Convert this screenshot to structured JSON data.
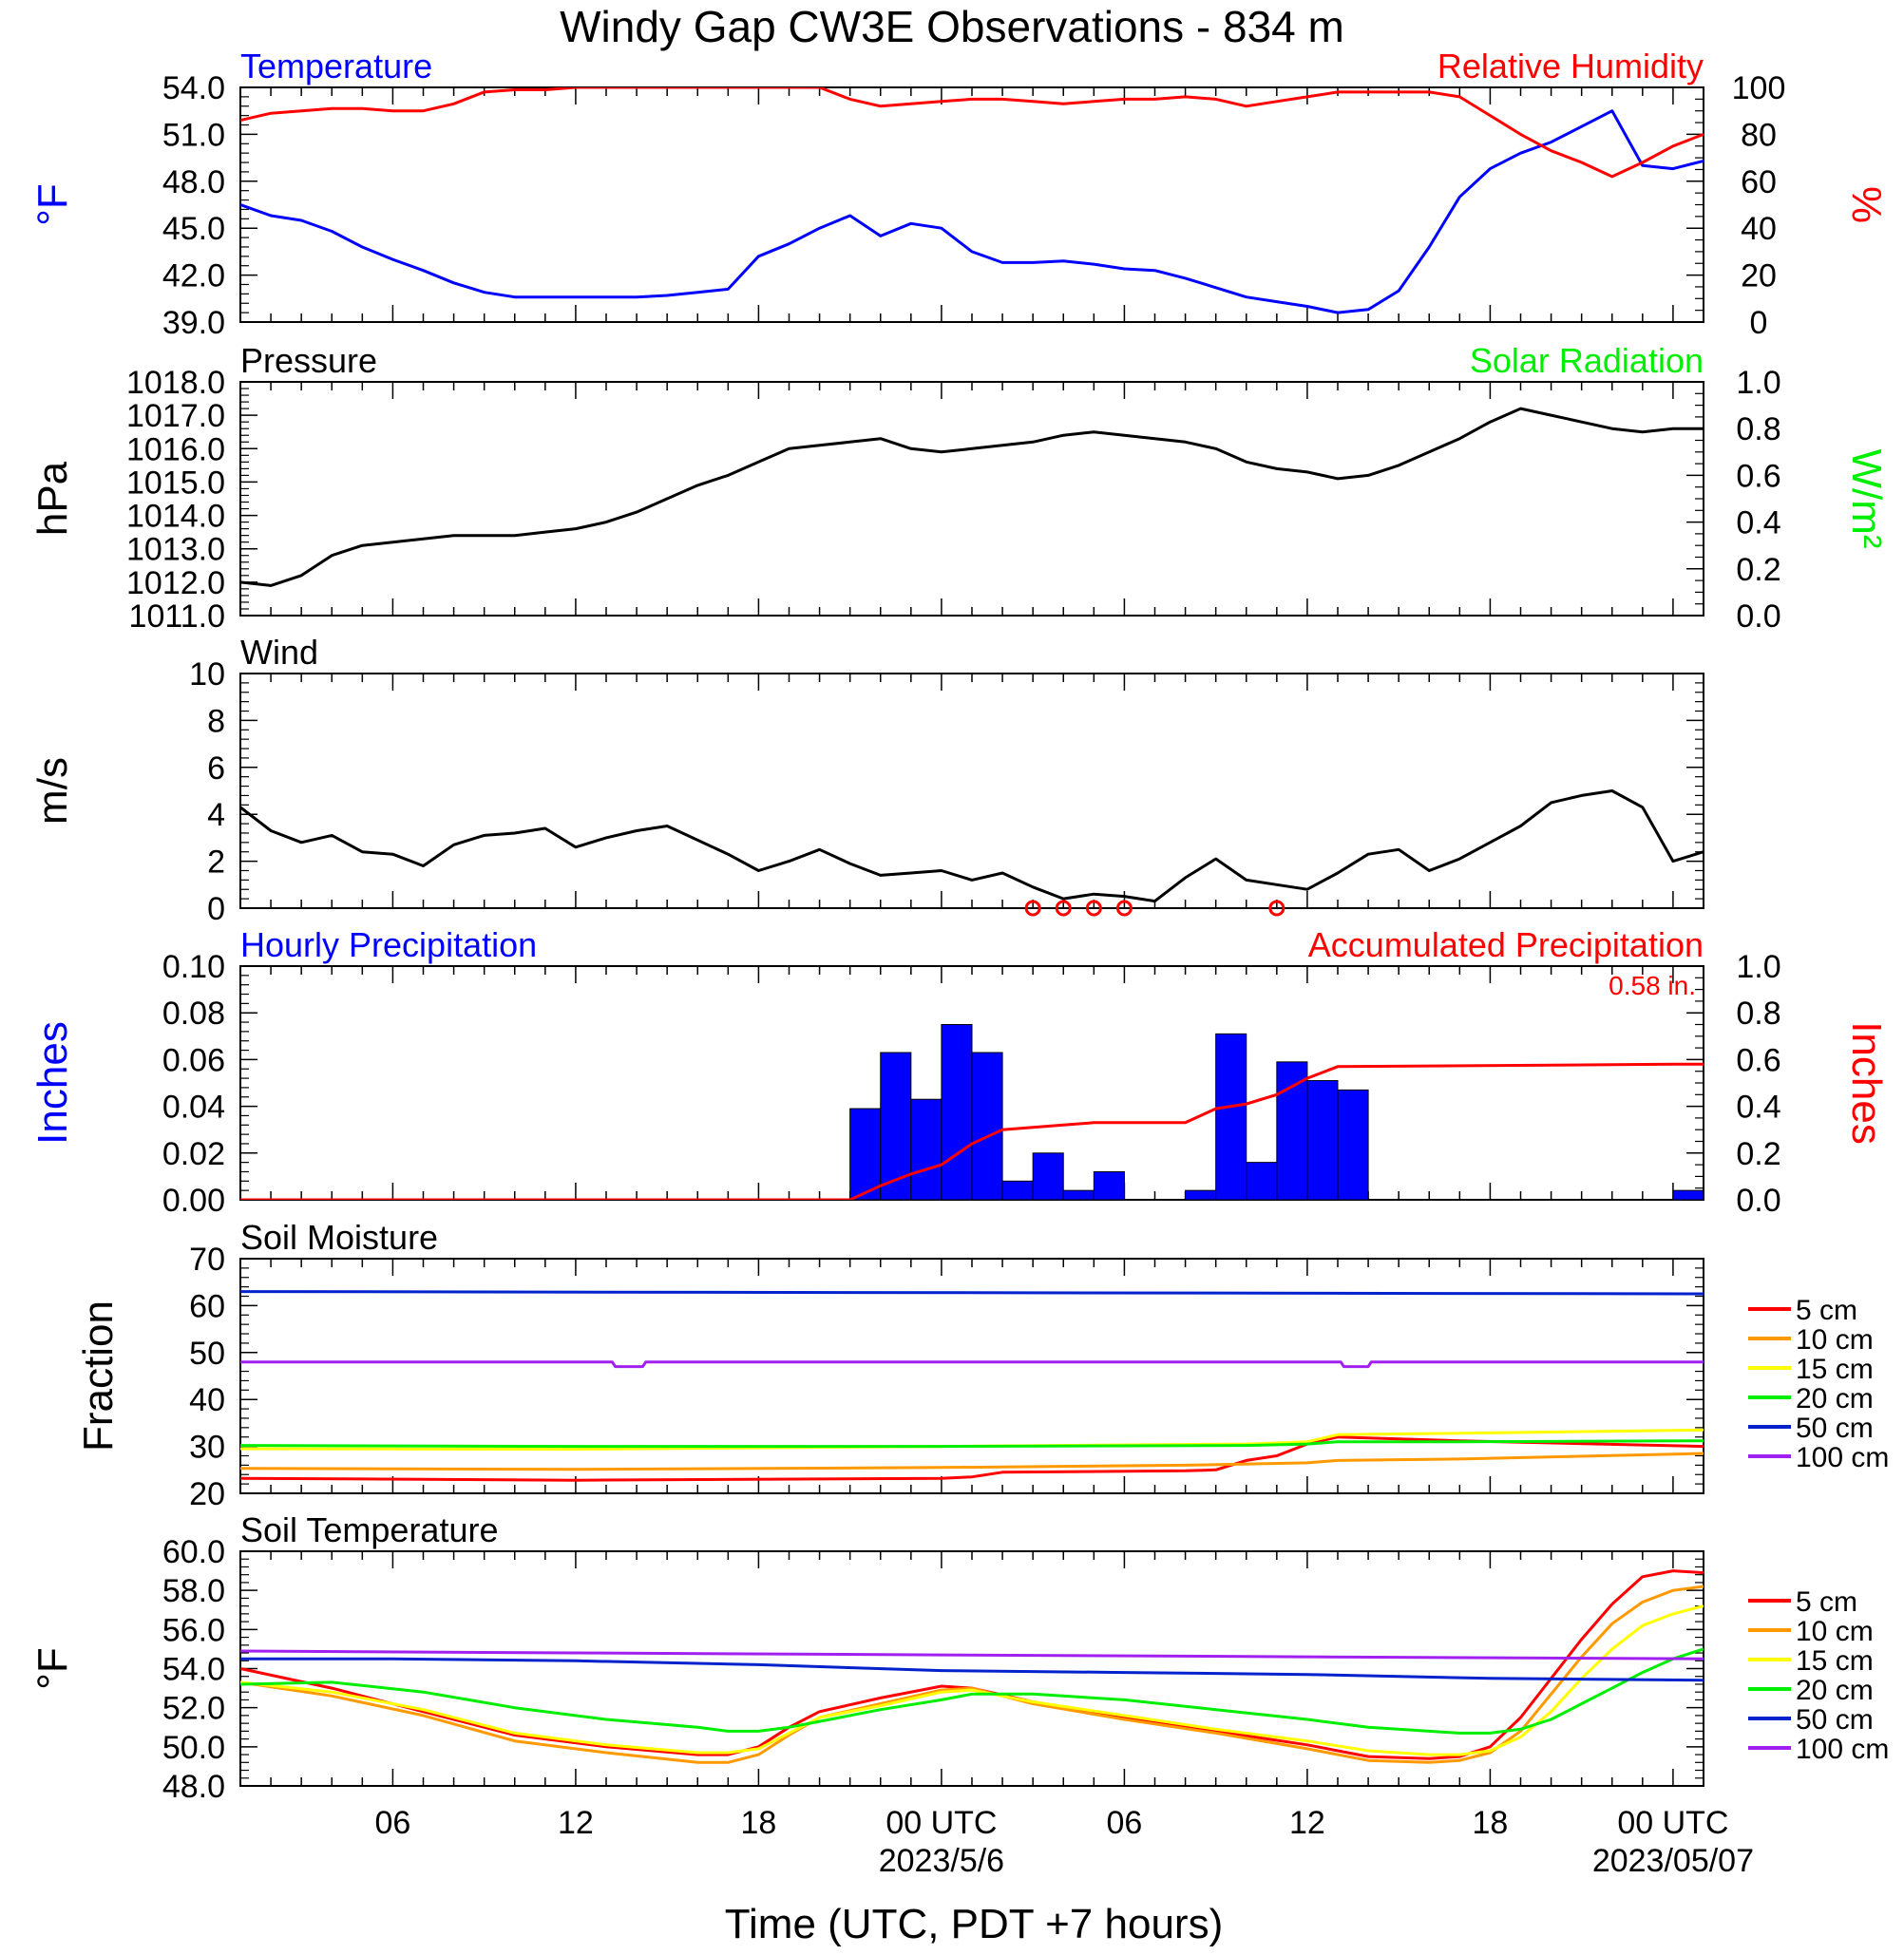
{
  "title": "Windy Gap CW3E Observations - 834 m",
  "x_axis": {
    "label": "Time (UTC, PDT +7 hours)",
    "ticks": [
      "06",
      "12",
      "18",
      "00 UTC",
      "06",
      "12",
      "18",
      "00 UTC"
    ],
    "tick_hours": [
      6,
      12,
      18,
      24,
      30,
      36,
      42,
      48
    ],
    "date_labels": [
      {
        "text": "2023/5/6",
        "hour": 24
      },
      {
        "text": "2023/05/07",
        "hour": 48
      }
    ],
    "range_hours": [
      1,
      49
    ]
  },
  "colors": {
    "blue": "#0000ff",
    "red": "#ff0000",
    "green": "#00ee00",
    "black": "#000000",
    "orange": "#ff9900",
    "yellow": "#ffff00",
    "soil_blue": "#0022cc",
    "purple": "#a020f0"
  },
  "chart_data": [
    {
      "id": "temp",
      "type": "line",
      "title_left": "Temperature",
      "title_right": "Relative Humidity",
      "ylabel_left": "°F",
      "ylabel_right": "%",
      "ylim_left": [
        39,
        54
      ],
      "ylim_right": [
        0,
        100
      ],
      "yticks_left": [
        "39.0",
        "42.0",
        "45.0",
        "48.0",
        "51.0",
        "54.0"
      ],
      "yticks_right": [
        "0",
        "20",
        "40",
        "60",
        "80",
        "100"
      ],
      "series": [
        {
          "axis": "left",
          "color": "#0000ff",
          "x": [
            1,
            2,
            3,
            4,
            5,
            6,
            7,
            8,
            9,
            10,
            11,
            12,
            13,
            14,
            15,
            16,
            17,
            18,
            19,
            20,
            21,
            22,
            23,
            24,
            25,
            26,
            27,
            28,
            29,
            30,
            31,
            32,
            33,
            34,
            35,
            36,
            37,
            38,
            39,
            40,
            41,
            42,
            43,
            44,
            45,
            46,
            47,
            48,
            49
          ],
          "y": [
            46.5,
            45.8,
            45.5,
            44.8,
            43.8,
            43.0,
            42.3,
            41.5,
            40.9,
            40.6,
            40.6,
            40.6,
            40.6,
            40.6,
            40.7,
            40.9,
            41.1,
            43.2,
            44.0,
            45.0,
            45.8,
            44.5,
            45.3,
            45.0,
            43.5,
            42.8,
            42.8,
            42.9,
            42.7,
            42.4,
            42.3,
            41.8,
            41.2,
            40.6,
            40.3,
            40.0,
            39.6,
            39.8,
            41.0,
            43.8,
            47.0,
            48.8,
            49.8,
            50.5,
            51.5,
            52.5,
            49.0,
            48.8,
            49.3
          ]
        },
        {
          "axis": "right",
          "color": "#ff0000",
          "x": [
            1,
            2,
            3,
            4,
            5,
            6,
            7,
            8,
            9,
            10,
            11,
            12,
            13,
            14,
            15,
            16,
            17,
            18,
            19,
            20,
            21,
            22,
            23,
            24,
            25,
            26,
            27,
            28,
            29,
            30,
            31,
            32,
            33,
            34,
            35,
            36,
            37,
            38,
            39,
            40,
            41,
            42,
            43,
            44,
            45,
            46,
            47,
            48,
            49
          ],
          "y": [
            86,
            89,
            90,
            91,
            91,
            90,
            90,
            93,
            98,
            99,
            99,
            100,
            100,
            100,
            100,
            100,
            100,
            100,
            100,
            100,
            95,
            92,
            93,
            94,
            95,
            95,
            94,
            93,
            94,
            95,
            95,
            96,
            95,
            92,
            94,
            96,
            98,
            98,
            98,
            98,
            96,
            88,
            80,
            73,
            68,
            62,
            68,
            75,
            80
          ]
        }
      ]
    },
    {
      "id": "pressure",
      "type": "line",
      "title_left": "Pressure",
      "title_right": "Solar Radiation",
      "ylabel_left": "hPa",
      "ylabel_right": "W/m²",
      "ylim_left": [
        1011,
        1018
      ],
      "ylim_right": [
        0,
        1
      ],
      "yticks_left": [
        "1011.0",
        "1012.0",
        "1013.0",
        "1014.0",
        "1015.0",
        "1016.0",
        "1017.0",
        "1018.0"
      ],
      "yticks_right": [
        "0.0",
        "0.2",
        "0.4",
        "0.6",
        "0.8",
        "1.0"
      ],
      "series": [
        {
          "axis": "left",
          "color": "#000000",
          "x": [
            1,
            2,
            3,
            4,
            5,
            6,
            7,
            8,
            9,
            10,
            11,
            12,
            13,
            14,
            15,
            16,
            17,
            18,
            19,
            20,
            21,
            22,
            23,
            24,
            25,
            26,
            27,
            28,
            29,
            30,
            31,
            32,
            33,
            34,
            35,
            36,
            37,
            38,
            39,
            40,
            41,
            42,
            43,
            44,
            45,
            46,
            47,
            48,
            49
          ],
          "y": [
            1012.0,
            1011.9,
            1012.2,
            1012.8,
            1013.1,
            1013.2,
            1013.3,
            1013.4,
            1013.4,
            1013.4,
            1013.5,
            1013.6,
            1013.8,
            1014.1,
            1014.5,
            1014.9,
            1015.2,
            1015.6,
            1016.0,
            1016.1,
            1016.2,
            1016.3,
            1016.0,
            1015.9,
            1016.0,
            1016.1,
            1016.2,
            1016.4,
            1016.5,
            1016.4,
            1016.3,
            1016.2,
            1016.0,
            1015.6,
            1015.4,
            1015.3,
            1015.1,
            1015.2,
            1015.5,
            1015.9,
            1016.3,
            1016.8,
            1017.2,
            1017.0,
            1016.8,
            1016.6,
            1016.5,
            1016.6,
            1016.6
          ]
        }
      ]
    },
    {
      "id": "wind",
      "type": "line",
      "title_left": "Wind",
      "ylabel_left": "m/s",
      "ylim_left": [
        0,
        10
      ],
      "yticks_left": [
        "0",
        "2",
        "4",
        "6",
        "8",
        "10"
      ],
      "series": [
        {
          "axis": "left",
          "color": "#000000",
          "x": [
            1,
            2,
            3,
            4,
            5,
            6,
            7,
            8,
            9,
            10,
            11,
            12,
            13,
            14,
            15,
            16,
            17,
            18,
            19,
            20,
            21,
            22,
            23,
            24,
            25,
            26,
            27,
            28,
            29,
            30,
            31,
            32,
            33,
            34,
            35,
            36,
            37,
            38,
            39,
            40,
            41,
            42,
            43,
            44,
            45,
            46,
            47,
            48,
            49
          ],
          "y": [
            4.3,
            3.3,
            2.8,
            3.1,
            2.4,
            2.3,
            1.8,
            2.7,
            3.1,
            3.2,
            3.4,
            2.6,
            3.0,
            3.3,
            3.5,
            2.9,
            2.3,
            1.6,
            2.0,
            2.5,
            1.9,
            1.4,
            1.5,
            1.6,
            1.2,
            1.5,
            0.9,
            0.4,
            0.6,
            0.5,
            0.3,
            1.3,
            2.1,
            1.2,
            1.0,
            0.8,
            1.5,
            2.3,
            2.5,
            1.6,
            2.1,
            2.8,
            3.5,
            4.5,
            4.8,
            5.0,
            4.3,
            2.0,
            2.4
          ]
        }
      ],
      "calm_markers_hours": [
        4,
        5,
        6,
        7,
        12
      ],
      "calm_offset_hours": 23
    },
    {
      "id": "precip",
      "type": "bar",
      "title_left": "Hourly Precipitation",
      "title_right": "Accumulated Precipitation",
      "annotation": "0.58 in.",
      "ylabel_left": "Inches",
      "ylabel_right": "Inches",
      "ylim_left": [
        0,
        0.1
      ],
      "ylim_right": [
        0,
        1
      ],
      "yticks_left": [
        "0.00",
        "0.02",
        "0.04",
        "0.06",
        "0.08",
        "0.10"
      ],
      "yticks_right": [
        "0.0",
        "0.2",
        "0.4",
        "0.6",
        "0.8",
        "1.0"
      ],
      "bars": {
        "color": "#0000ff",
        "start_hours": [
          21,
          22,
          23,
          24,
          25,
          26,
          27,
          28,
          29,
          30,
          32,
          33,
          34,
          35,
          36,
          37,
          48
        ],
        "values": [
          0.039,
          0.063,
          0.043,
          0.075,
          0.063,
          0.008,
          0.02,
          0.004,
          0.012,
          0.0,
          0.004,
          0.071,
          0.016,
          0.059,
          0.051,
          0.047,
          0.004
        ]
      },
      "accumulated": {
        "color": "#ff0000",
        "x": [
          1,
          21,
          22,
          23,
          24,
          25,
          26,
          27,
          28,
          29,
          30,
          32,
          33,
          34,
          35,
          36,
          37,
          48,
          49
        ],
        "y": [
          0,
          0,
          0.06,
          0.11,
          0.15,
          0.24,
          0.3,
          0.31,
          0.32,
          0.33,
          0.33,
          0.33,
          0.39,
          0.41,
          0.45,
          0.52,
          0.57,
          0.58,
          0.58
        ]
      }
    },
    {
      "id": "soil_moisture",
      "type": "line",
      "title_left": "Soil Moisture",
      "ylabel_left": "Fraction",
      "ylim_left": [
        20,
        70
      ],
      "yticks_left": [
        "20",
        "30",
        "40",
        "50",
        "60",
        "70"
      ],
      "legend": [
        "5 cm",
        "10 cm",
        "15 cm",
        "20 cm",
        "50 cm",
        "100 cm"
      ],
      "legend_position": "right",
      "series": [
        {
          "name": "5 cm",
          "color": "#ff0000",
          "x": [
            1,
            12,
            24,
            25,
            26,
            32,
            33,
            34,
            35,
            36,
            37,
            41,
            49
          ],
          "y": [
            23.2,
            22.8,
            23.2,
            23.5,
            24.5,
            24.8,
            25.0,
            27.0,
            28.0,
            30.5,
            32.0,
            31.2,
            30.0
          ]
        },
        {
          "name": "10 cm",
          "color": "#ff9900",
          "x": [
            1,
            12,
            24,
            32,
            36,
            37,
            41,
            49
          ],
          "y": [
            25.3,
            25.1,
            25.5,
            26.0,
            26.5,
            27.0,
            27.3,
            28.5
          ]
        },
        {
          "name": "15 cm",
          "color": "#ffff00",
          "x": [
            1,
            12,
            24,
            34,
            36,
            37,
            41,
            49
          ],
          "y": [
            29.5,
            29.4,
            30.0,
            30.5,
            31.0,
            32.5,
            32.8,
            33.5
          ]
        },
        {
          "name": "20 cm",
          "color": "#00ee00",
          "x": [
            1,
            12,
            24,
            34,
            36,
            37,
            41,
            49
          ],
          "y": [
            30.2,
            30.0,
            30.0,
            30.2,
            30.5,
            31.0,
            31.0,
            31.2
          ]
        },
        {
          "name": "50 cm",
          "color": "#0022cc",
          "x": [
            1,
            49
          ],
          "y": [
            63.0,
            62.5
          ]
        },
        {
          "name": "100 cm",
          "color": "#a020f0",
          "x": [
            1,
            13.2,
            13.3,
            14.2,
            14.3,
            37.1,
            37.2,
            38.0,
            38.1,
            49
          ],
          "y": [
            48,
            48,
            47,
            47,
            48,
            48,
            47,
            47,
            48,
            48
          ]
        }
      ]
    },
    {
      "id": "soil_temp",
      "type": "line",
      "title_left": "Soil Temperature",
      "ylabel_left": "°F",
      "ylim_left": [
        48,
        60
      ],
      "yticks_left": [
        "48.0",
        "50.0",
        "52.0",
        "54.0",
        "56.0",
        "58.0",
        "60.0"
      ],
      "legend": [
        "5 cm",
        "10 cm",
        "15 cm",
        "20 cm",
        "50 cm",
        "100 cm"
      ],
      "legend_position": "right",
      "series": [
        {
          "name": "5 cm",
          "color": "#ff0000",
          "x": [
            1,
            4,
            7,
            10,
            13,
            16,
            17,
            18,
            19,
            20,
            22,
            24,
            25,
            27,
            30,
            33,
            36,
            38,
            40,
            41,
            42,
            43,
            44,
            45,
            46,
            47,
            48,
            49
          ],
          "y": [
            54.0,
            53.0,
            51.8,
            50.6,
            50.0,
            49.6,
            49.6,
            50.0,
            51.0,
            51.8,
            52.5,
            53.1,
            53.0,
            52.3,
            51.5,
            50.8,
            50.1,
            49.5,
            49.4,
            49.5,
            50.0,
            51.5,
            53.5,
            55.5,
            57.3,
            58.7,
            59.0,
            58.9
          ]
        },
        {
          "name": "10 cm",
          "color": "#ff9900",
          "x": [
            1,
            4,
            7,
            10,
            13,
            16,
            17,
            18,
            19,
            20,
            22,
            24,
            25,
            27,
            30,
            33,
            36,
            38,
            40,
            41,
            42,
            43,
            44,
            45,
            46,
            47,
            48,
            49
          ],
          "y": [
            53.3,
            52.6,
            51.6,
            50.3,
            49.7,
            49.2,
            49.2,
            49.6,
            50.6,
            51.5,
            52.2,
            52.9,
            53.0,
            52.2,
            51.4,
            50.7,
            49.9,
            49.3,
            49.2,
            49.3,
            49.7,
            50.8,
            52.7,
            54.6,
            56.3,
            57.4,
            58.0,
            58.2
          ]
        },
        {
          "name": "15 cm",
          "color": "#ffff00",
          "x": [
            1,
            4,
            7,
            10,
            13,
            16,
            17,
            18,
            19,
            20,
            22,
            24,
            25,
            27,
            30,
            33,
            36,
            38,
            40,
            41,
            42,
            43,
            44,
            45,
            46,
            47,
            48,
            49
          ],
          "y": [
            53.3,
            52.8,
            51.9,
            50.7,
            50.1,
            49.7,
            49.7,
            49.9,
            50.7,
            51.5,
            52.1,
            52.8,
            52.9,
            52.3,
            51.6,
            50.9,
            50.3,
            49.8,
            49.6,
            49.6,
            49.8,
            50.5,
            51.8,
            53.5,
            55.0,
            56.2,
            56.8,
            57.2
          ]
        },
        {
          "name": "20 cm",
          "color": "#00ee00",
          "x": [
            1,
            4,
            7,
            10,
            13,
            16,
            17,
            18,
            19,
            20,
            22,
            24,
            25,
            27,
            30,
            33,
            36,
            38,
            40,
            41,
            42,
            43,
            44,
            45,
            46,
            47,
            48,
            49
          ],
          "y": [
            53.2,
            53.3,
            52.8,
            52.0,
            51.4,
            51.0,
            50.8,
            50.8,
            51.0,
            51.3,
            51.9,
            52.4,
            52.7,
            52.7,
            52.4,
            51.9,
            51.4,
            51.0,
            50.8,
            50.7,
            50.7,
            50.9,
            51.4,
            52.2,
            53.0,
            53.8,
            54.5,
            55.0
          ]
        },
        {
          "name": "50 cm",
          "color": "#0022cc",
          "x": [
            1,
            6,
            12,
            18,
            24,
            30,
            36,
            42,
            49
          ],
          "y": [
            54.5,
            54.5,
            54.4,
            54.2,
            53.9,
            53.8,
            53.7,
            53.5,
            53.4
          ]
        },
        {
          "name": "100 cm",
          "color": "#a020f0",
          "x": [
            1,
            12,
            24,
            36,
            49
          ],
          "y": [
            54.9,
            54.8,
            54.7,
            54.6,
            54.5
          ]
        }
      ]
    }
  ]
}
